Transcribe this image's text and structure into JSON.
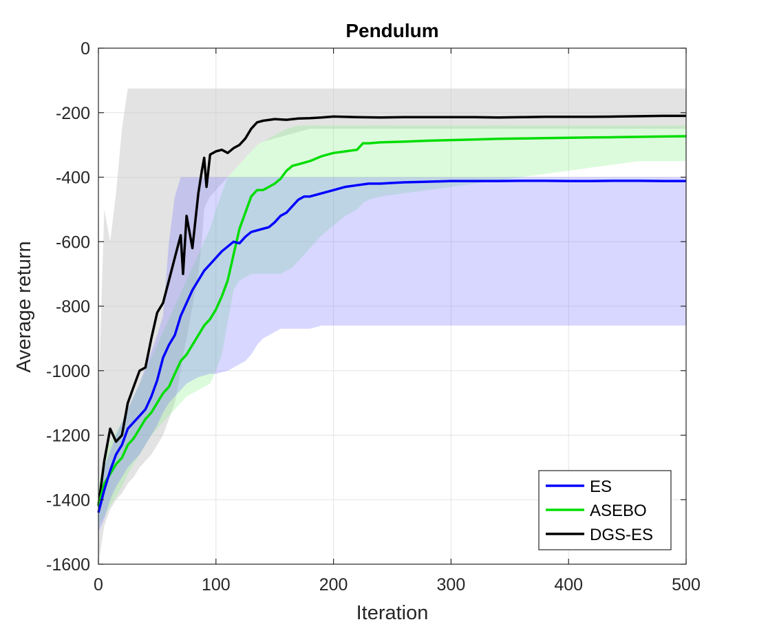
{
  "chart_data": {
    "type": "line",
    "title": "Pendulum",
    "xlabel": "Iteration",
    "ylabel": "Average return",
    "xlim": [
      0,
      500
    ],
    "ylim": [
      -1600,
      0
    ],
    "xticks": [
      0,
      100,
      200,
      300,
      400,
      500
    ],
    "yticks": [
      0,
      -200,
      -400,
      -600,
      -800,
      -1000,
      -1200,
      -1400,
      -1600
    ],
    "grid": true,
    "legend_position": "bottom-right",
    "series": [
      {
        "name": "ES",
        "color": "#0000ff",
        "band_color": "#7070ff",
        "x": [
          0,
          5,
          10,
          15,
          20,
          25,
          30,
          35,
          40,
          45,
          50,
          55,
          60,
          65,
          70,
          75,
          80,
          85,
          90,
          95,
          100,
          105,
          110,
          115,
          120,
          125,
          130,
          135,
          140,
          145,
          150,
          155,
          160,
          165,
          170,
          175,
          180,
          190,
          200,
          210,
          220,
          230,
          240,
          250,
          260,
          280,
          300,
          320,
          340,
          360,
          380,
          400,
          420,
          440,
          460,
          480,
          500
        ],
        "y": [
          -1440,
          -1370,
          -1310,
          -1260,
          -1230,
          -1180,
          -1160,
          -1140,
          -1120,
          -1080,
          -1030,
          -960,
          -920,
          -890,
          -830,
          -790,
          -750,
          -720,
          -690,
          -670,
          -650,
          -630,
          -615,
          -600,
          -605,
          -585,
          -570,
          -565,
          -560,
          -555,
          -540,
          -520,
          -510,
          -490,
          -470,
          -460,
          -460,
          -450,
          -440,
          -430,
          -425,
          -420,
          -420,
          -418,
          -416,
          -414,
          -412,
          -412,
          -412,
          -411,
          -411,
          -412,
          -412,
          -411,
          -411,
          -412,
          -412
        ],
        "lower": [
          -1500,
          -1460,
          -1400,
          -1360,
          -1330,
          -1300,
          -1280,
          -1260,
          -1230,
          -1200,
          -1170,
          -1130,
          -1100,
          -1080,
          -1060,
          -1040,
          -1030,
          -1020,
          -1015,
          -1010,
          -1010,
          -1005,
          -1000,
          -990,
          -980,
          -970,
          -950,
          -920,
          -900,
          -890,
          -880,
          -870,
          -870,
          -870,
          -870,
          -870,
          -870,
          -860,
          -860,
          -860,
          -860,
          -860,
          -860,
          -860,
          -860,
          -860,
          -860,
          -860,
          -860,
          -860,
          -860,
          -860,
          -860,
          -860,
          -860,
          -860,
          -860
        ],
        "upper": [
          -1380,
          -1300,
          -1250,
          -1200,
          -1160,
          -1120,
          -1080,
          -1040,
          -990,
          -940,
          -890,
          -830,
          -600,
          -460,
          -400,
          -400,
          -400,
          -400,
          -400,
          -400,
          -400,
          -400,
          -400,
          -400,
          -400,
          -400,
          -400,
          -400,
          -400,
          -400,
          -400,
          -400,
          -400,
          -400,
          -400,
          -400,
          -400,
          -400,
          -400,
          -400,
          -400,
          -400,
          -400,
          -400,
          -400,
          -400,
          -400,
          -400,
          -400,
          -400,
          -400,
          -400,
          -400,
          -400,
          -400,
          -400,
          -400
        ]
      },
      {
        "name": "ASEBO",
        "color": "#00dd00",
        "band_color": "#80f080",
        "x": [
          0,
          5,
          10,
          15,
          20,
          25,
          30,
          35,
          40,
          45,
          50,
          55,
          60,
          65,
          70,
          75,
          80,
          85,
          90,
          95,
          100,
          105,
          110,
          115,
          120,
          125,
          130,
          135,
          140,
          145,
          150,
          155,
          160,
          165,
          170,
          175,
          180,
          190,
          200,
          210,
          220,
          225,
          230,
          240,
          260,
          280,
          300,
          320,
          340,
          360,
          380,
          400,
          420,
          440,
          460,
          480,
          500
        ],
        "y": [
          -1420,
          -1350,
          -1320,
          -1290,
          -1270,
          -1230,
          -1210,
          -1180,
          -1150,
          -1130,
          -1100,
          -1070,
          -1050,
          -1010,
          -970,
          -950,
          -920,
          -890,
          -860,
          -840,
          -810,
          -770,
          -720,
          -640,
          -560,
          -510,
          -460,
          -440,
          -440,
          -430,
          -420,
          -405,
          -380,
          -365,
          -360,
          -355,
          -350,
          -335,
          -325,
          -320,
          -315,
          -295,
          -295,
          -292,
          -290,
          -287,
          -285,
          -283,
          -281,
          -280,
          -279,
          -278,
          -277,
          -276,
          -275,
          -274,
          -273
        ],
        "lower": [
          -1480,
          -1450,
          -1420,
          -1390,
          -1360,
          -1320,
          -1290,
          -1260,
          -1230,
          -1200,
          -1180,
          -1160,
          -1140,
          -1120,
          -1100,
          -1080,
          -1070,
          -1060,
          -1050,
          -1040,
          -1000,
          -950,
          -850,
          -750,
          -720,
          -710,
          -700,
          -700,
          -700,
          -700,
          -700,
          -700,
          -690,
          -680,
          -660,
          -640,
          -620,
          -580,
          -550,
          -520,
          -500,
          -480,
          -470,
          -460,
          -450,
          -440,
          -430,
          -420,
          -410,
          -400,
          -390,
          -380,
          -370,
          -360,
          -350,
          -350,
          -350
        ],
        "upper": [
          -1360,
          -1260,
          -1220,
          -1190,
          -1160,
          -1120,
          -1080,
          -1040,
          -1000,
          -960,
          -920,
          -880,
          -840,
          -800,
          -760,
          -720,
          -680,
          -640,
          -600,
          -560,
          -500,
          -450,
          -400,
          -380,
          -360,
          -340,
          -320,
          -300,
          -290,
          -280,
          -270,
          -260,
          -250,
          -245,
          -240,
          -240,
          -240,
          -240,
          -240,
          -240,
          -240,
          -240,
          -240,
          -240,
          -240,
          -240,
          -240,
          -240,
          -240,
          -240,
          -240,
          -240,
          -240,
          -240,
          -240,
          -240,
          -240
        ]
      },
      {
        "name": "DGS-ES",
        "color": "#000000",
        "band_color": "#c8c8c8",
        "x": [
          0,
          5,
          10,
          15,
          20,
          25,
          30,
          35,
          40,
          45,
          50,
          55,
          60,
          65,
          70,
          72,
          75,
          80,
          85,
          88,
          90,
          92,
          95,
          100,
          105,
          110,
          115,
          120,
          125,
          130,
          135,
          140,
          150,
          160,
          170,
          180,
          190,
          200,
          220,
          240,
          260,
          280,
          300,
          320,
          340,
          360,
          380,
          400,
          420,
          440,
          460,
          480,
          500
        ],
        "y": [
          -1420,
          -1280,
          -1180,
          -1220,
          -1200,
          -1100,
          -1050,
          -1000,
          -990,
          -900,
          -820,
          -790,
          -720,
          -650,
          -580,
          -700,
          -520,
          -620,
          -450,
          -380,
          -340,
          -430,
          -330,
          -320,
          -315,
          -325,
          -310,
          -300,
          -280,
          -250,
          -230,
          -225,
          -220,
          -222,
          -218,
          -217,
          -215,
          -212,
          -214,
          -215,
          -214,
          -214,
          -214,
          -214,
          -215,
          -214,
          -213,
          -213,
          -213,
          -212,
          -211,
          -210,
          -210
        ],
        "lower": [
          -1600,
          -1480,
          -1430,
          -1400,
          -1380,
          -1350,
          -1330,
          -1300,
          -1280,
          -1260,
          -1230,
          -1200,
          -1150,
          -1100,
          -1000,
          -950,
          -900,
          -800,
          -700,
          -600,
          -500,
          -480,
          -460,
          -440,
          -420,
          -400,
          -380,
          -360,
          -340,
          -320,
          -300,
          -290,
          -280,
          -270,
          -260,
          -250,
          -250,
          -250,
          -250,
          -250,
          -250,
          -250,
          -250,
          -250,
          -250,
          -250,
          -250,
          -250,
          -250,
          -250,
          -250,
          -250,
          -250
        ],
        "upper": [
          -1100,
          -500,
          -600,
          -450,
          -250,
          -125,
          -125,
          -125,
          -125,
          -125,
          -125,
          -125,
          -125,
          -125,
          -125,
          -125,
          -125,
          -125,
          -125,
          -125,
          -125,
          -125,
          -125,
          -125,
          -125,
          -125,
          -125,
          -125,
          -125,
          -125,
          -125,
          -125,
          -125,
          -125,
          -125,
          -125,
          -125,
          -125,
          -125,
          -125,
          -125,
          -125,
          -125,
          -125,
          -125,
          -125,
          -125,
          -125,
          -125,
          -125,
          -125,
          -125,
          -125
        ]
      }
    ]
  }
}
